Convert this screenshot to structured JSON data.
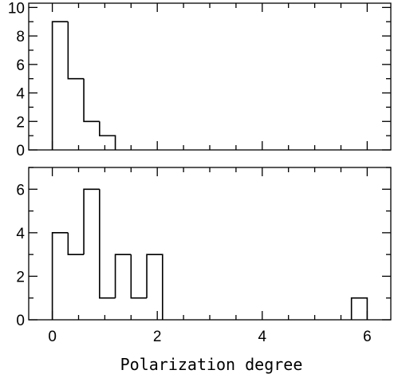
{
  "chart_data": [
    {
      "type": "histogram",
      "panel": "top",
      "title": "",
      "xlabel": "",
      "ylabel": "",
      "xlim": [
        -0.45,
        6.45
      ],
      "ylim": [
        0,
        10.3
      ],
      "bin_edges": [
        0.0,
        0.3,
        0.6,
        0.9,
        1.2
      ],
      "counts": [
        9,
        5,
        2,
        1
      ],
      "yticks_major": [
        0,
        2,
        4,
        6,
        8,
        10
      ],
      "yticks_minor": [
        1,
        3,
        5,
        7,
        9
      ],
      "ytick_labels": [
        "0",
        "2",
        "4",
        "6",
        "8",
        "10"
      ],
      "xticks_major": [
        0,
        2,
        4,
        6
      ],
      "xtick_labels": [],
      "grid": false,
      "legend": "none"
    },
    {
      "type": "histogram",
      "panel": "bottom",
      "title": "",
      "xlabel": "Polarization degree",
      "ylabel": "",
      "xlim": [
        -0.45,
        6.45
      ],
      "ylim": [
        0,
        7.0
      ],
      "bin_edges": [
        0.0,
        0.3,
        0.6,
        0.9,
        1.2,
        1.5,
        1.8,
        2.1,
        2.4,
        2.7,
        3.0,
        3.3,
        3.6,
        3.9,
        4.2,
        4.5,
        4.8,
        5.1,
        5.4,
        5.7,
        6.0
      ],
      "counts": [
        4,
        3,
        6,
        1,
        3,
        1,
        3,
        0,
        0,
        0,
        0,
        0,
        0,
        0,
        0,
        0,
        0,
        0,
        0,
        1
      ],
      "yticks_major": [
        0,
        2,
        4,
        6
      ],
      "yticks_minor": [
        1,
        3,
        5,
        7
      ],
      "ytick_labels": [
        "0",
        "2",
        "4",
        "6"
      ],
      "xticks_major": [
        0,
        2,
        4,
        6
      ],
      "xtick_labels": [
        "0",
        "2",
        "4",
        "6"
      ],
      "grid": false,
      "legend": "none"
    }
  ]
}
